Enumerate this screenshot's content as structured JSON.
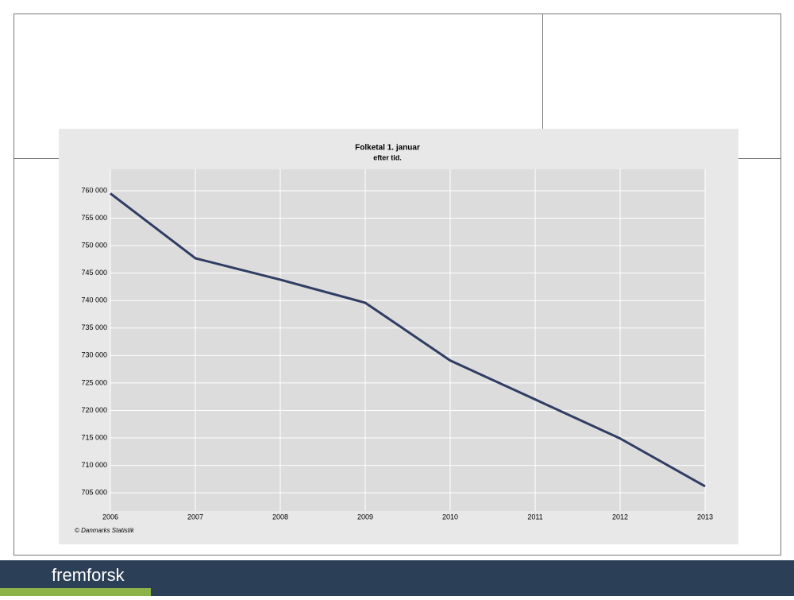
{
  "chart_data": {
    "type": "line",
    "title": "Folketal 1. januar",
    "subtitle": "efter tid.",
    "source": "© Danmarks Statistik",
    "x": [
      2006,
      2007,
      2008,
      2009,
      2010,
      2011,
      2012,
      2013
    ],
    "series": [
      {
        "name": "Folketal",
        "color": "#2f3d63",
        "values": [
          759500,
          747700,
          743800,
          739600,
          729100,
          722000,
          714900,
          706200
        ]
      }
    ],
    "xlim": [
      2006,
      2013
    ],
    "xticks": [
      2006,
      2007,
      2008,
      2009,
      2010,
      2011,
      2012,
      2013
    ],
    "ylim": [
      701700,
      763900
    ],
    "yticks": [
      {
        "value": 705000,
        "label": "705 000"
      },
      {
        "value": 710000,
        "label": "710 000"
      },
      {
        "value": 715000,
        "label": "715 000"
      },
      {
        "value": 720000,
        "label": "720 000"
      },
      {
        "value": 725000,
        "label": "725 000"
      },
      {
        "value": 730000,
        "label": "730 000"
      },
      {
        "value": 735000,
        "label": "735 000"
      },
      {
        "value": 740000,
        "label": "740 000"
      },
      {
        "value": 745000,
        "label": "745 000"
      },
      {
        "value": 750000,
        "label": "750 000"
      },
      {
        "value": 755000,
        "label": "755 000"
      },
      {
        "value": 760000,
        "label": "760 000"
      }
    ],
    "grid": true
  },
  "footer": {
    "brand": "fremforsk"
  }
}
